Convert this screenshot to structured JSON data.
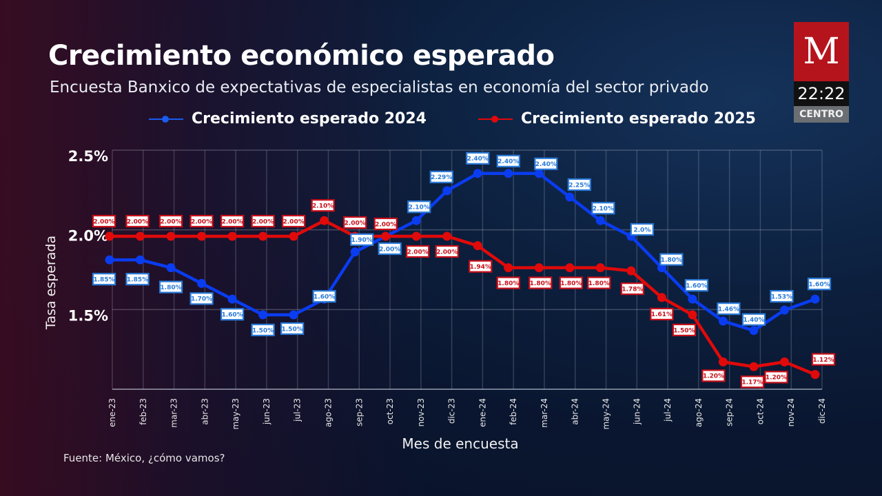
{
  "header": {
    "title": "Crecimiento económico esperado",
    "subtitle": "Encuesta Banxico de expectativas de especialistas en economía del sector privado"
  },
  "broadcast": {
    "logo_letter": "M",
    "time": "22:22",
    "region": "CENTRO",
    "logo_color": "#b5141c"
  },
  "source": "Fuente: México, ¿cómo vamos?",
  "chart_data": {
    "type": "line",
    "title": "Crecimiento económico esperado",
    "subtitle": "Encuesta Banxico de expectativas de especialistas en economía del sector privado",
    "xlabel": "Mes de encuesta",
    "ylabel": "Tasa esperada",
    "ylim": [
      1.0,
      2.5
    ],
    "yticks": [
      1.5,
      2.0,
      2.5
    ],
    "ytick_labels": [
      "1.5%",
      "2.0%",
      "2.5%"
    ],
    "grid": true,
    "legend_position": "top-center",
    "categories": [
      "ene-23",
      "feb-23",
      "mar-23",
      "abr-23",
      "may-23",
      "jun-23",
      "jul-23",
      "ago-23",
      "sep-23",
      "oct-23",
      "nov-23",
      "dic-23",
      "ene-24",
      "feb-24",
      "mar-24",
      "abr-24",
      "may-24",
      "jun-24",
      "jul-24",
      "ago-24",
      "sep-24",
      "oct-24",
      "nov-24",
      "dic-24"
    ],
    "series": [
      {
        "name": "Crecimiento esperado 2024",
        "color": "#0a3cf0",
        "label_color": "#2a7ad8",
        "values": [
          1.85,
          1.85,
          1.8,
          1.7,
          1.6,
          1.5,
          1.5,
          1.6,
          1.9,
          2.0,
          2.1,
          2.29,
          2.4,
          2.4,
          2.4,
          2.25,
          2.1,
          2.0,
          1.8,
          1.6,
          1.46,
          1.4,
          1.53,
          1.6
        ],
        "labels": [
          "1.85%",
          "1.85%",
          "1.80%",
          "1.70%",
          "1.60%",
          "1.50%",
          "1.50%",
          "1.60%",
          "1.90%",
          "2.00%",
          "2.10%",
          "2.29%",
          "2.40%",
          "2.40%",
          "2.40%",
          "2.25%",
          "2.10%",
          "2.0%",
          "1.80%",
          "1.60%",
          "1.46%",
          "1.40%",
          "1.53%",
          "1.60%"
        ]
      },
      {
        "name": "Crecimiento esperado 2025",
        "color": "#e00a0a",
        "label_color": "#c8101a",
        "values": [
          2.0,
          2.0,
          2.0,
          2.0,
          2.0,
          2.0,
          2.0,
          2.1,
          2.0,
          2.0,
          2.0,
          2.0,
          1.94,
          1.8,
          1.8,
          1.8,
          1.8,
          1.78,
          1.61,
          1.5,
          1.2,
          1.17,
          1.2,
          1.12
        ],
        "labels": [
          "2.00%",
          "2.00%",
          "2.00%",
          "2.00%",
          "2.00%",
          "2.00%",
          "2.00%",
          "2.10%",
          "2.00%",
          "2.00%",
          "2.00%",
          "2.00%",
          "1.94%",
          "1.80%",
          "1.80%",
          "1.80%",
          "1.80%",
          "1.78%",
          "1.61%",
          "1.50%",
          "1.20%",
          "1.17%",
          "1.20%",
          "1.12%"
        ]
      }
    ]
  }
}
